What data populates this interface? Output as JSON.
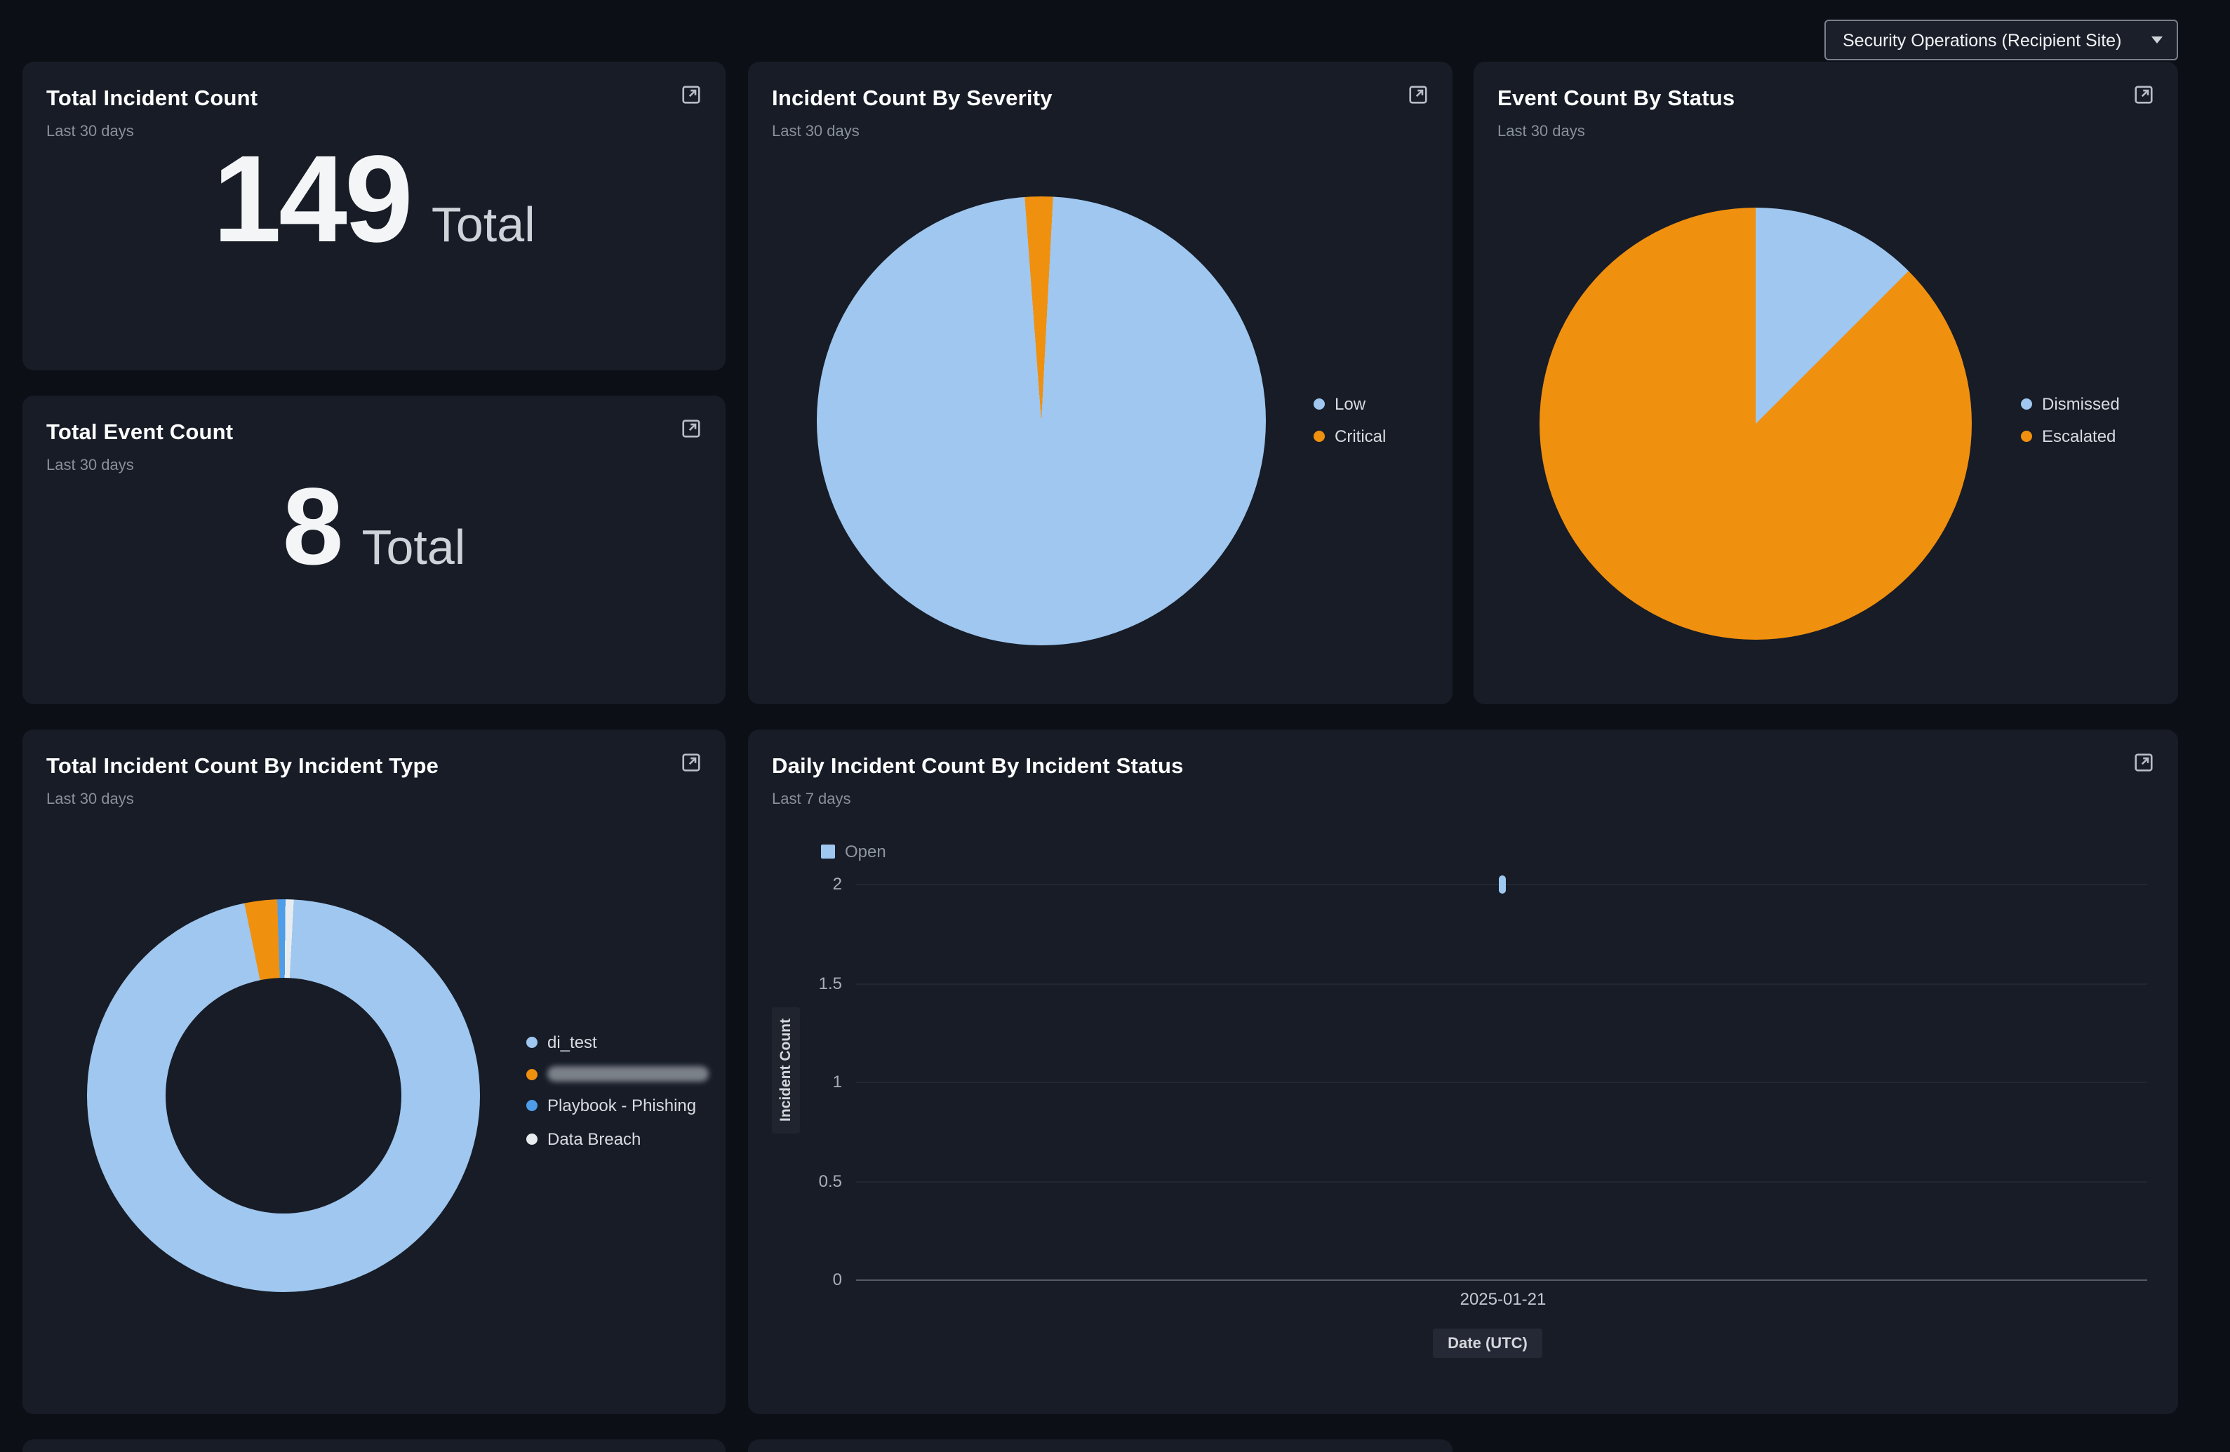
{
  "site_selector": {
    "value": "Security Operations (Recipient Site)"
  },
  "cards": {
    "total_incident_count": {
      "title": "Total Incident Count",
      "subtitle": "Last 30 days",
      "value": "149",
      "unit": "Total"
    },
    "total_event_count": {
      "title": "Total Event Count",
      "subtitle": "Last 30 days",
      "value": "8",
      "unit": "Total"
    },
    "incident_count_by_severity": {
      "title": "Incident Count By Severity",
      "subtitle": "Last 30 days"
    },
    "event_count_by_status": {
      "title": "Event Count By Status",
      "subtitle": "Last 30 days"
    },
    "incident_count_by_type": {
      "title": "Total Incident Count By Incident Type",
      "subtitle": "Last 30 days"
    },
    "daily_incident_count": {
      "title": "Daily Incident Count By Incident Status",
      "subtitle": "Last 7 days"
    }
  },
  "chart_data": [
    {
      "id": "incident_count_by_severity",
      "type": "pie",
      "title": "Incident Count By Severity",
      "labels": [
        "Low",
        "Critical"
      ],
      "values": [
        146,
        3
      ],
      "colors": [
        "#9fc7ef",
        "#f0900f"
      ],
      "start_angle": 3,
      "legend_position": "right"
    },
    {
      "id": "event_count_by_status",
      "type": "pie",
      "title": "Event Count By Status",
      "labels": [
        "Dismissed",
        "Escalated"
      ],
      "values": [
        1,
        7
      ],
      "colors": [
        "#9fc7ef",
        "#f0900f"
      ],
      "start_angle": 0,
      "legend_position": "right"
    },
    {
      "id": "incident_count_by_type",
      "type": "donut",
      "title": "Total Incident Count By Incident Type",
      "labels": [
        "di_test",
        "",
        "Playbook - Phishing",
        "Data Breach"
      ],
      "labels_redacted": [
        false,
        true,
        false,
        false
      ],
      "values": [
        143,
        4,
        1,
        1
      ],
      "colors": [
        "#9fc7ef",
        "#f0900f",
        "#4f9de8",
        "#e9ecef"
      ],
      "start_angle": 3,
      "legend_position": "right"
    },
    {
      "id": "daily_open",
      "type": "bar",
      "title": "Daily Incident Count By Incident Status",
      "x": [
        "2025-01-21"
      ],
      "series": [
        {
          "name": "Open",
          "color": "#9ec8f0",
          "values": [
            2
          ]
        }
      ],
      "ylabel": "Incident Count",
      "xlabel": "Date (UTC)",
      "ylim": [
        0,
        2
      ],
      "yticks": [
        2,
        1.5,
        1,
        0.5,
        0
      ],
      "grid": true,
      "legend_position": "top-left"
    }
  ]
}
